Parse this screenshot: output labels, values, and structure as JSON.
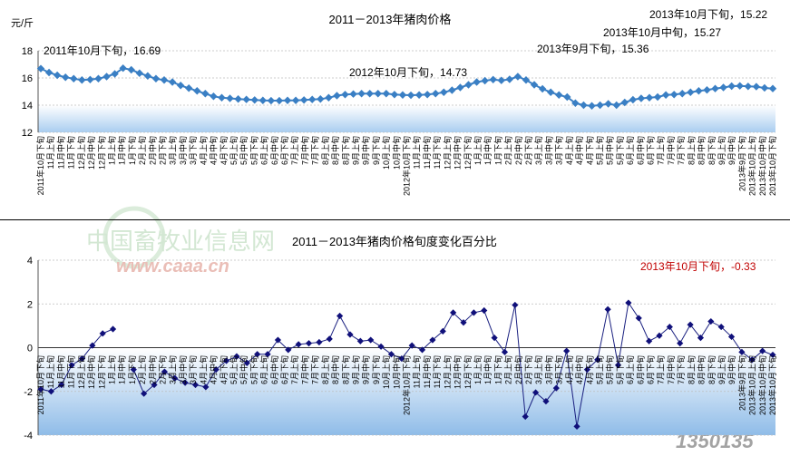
{
  "chart_data": [
    {
      "type": "line",
      "title": "2011－2013年猪肉价格",
      "ylabel": "元/斤",
      "ylim": [
        12,
        18
      ],
      "yticks": [
        12,
        14,
        16,
        18
      ],
      "grid": true,
      "series": [
        {
          "values": [
            16.69,
            16.4,
            16.2,
            16.05,
            15.95,
            15.85,
            15.88,
            15.95,
            16.1,
            16.3,
            16.72,
            16.6,
            16.35,
            16.15,
            15.95,
            15.85,
            15.7,
            15.45,
            15.25,
            15.05,
            14.85,
            14.65,
            14.55,
            14.5,
            14.45,
            14.42,
            14.38,
            14.35,
            14.33,
            14.33,
            14.35,
            14.35,
            14.38,
            14.42,
            14.45,
            14.55,
            14.7,
            14.78,
            14.82,
            14.85,
            14.85,
            14.85,
            14.85,
            14.78,
            14.75,
            14.73,
            14.75,
            14.78,
            14.85,
            14.95,
            15.1,
            15.3,
            15.5,
            15.7,
            15.8,
            15.88,
            15.82,
            15.9,
            16.1,
            15.85,
            15.5,
            15.2,
            14.95,
            14.75,
            14.6,
            14.15,
            14.0,
            13.95,
            14.0,
            14.1,
            14.0,
            14.2,
            14.4,
            14.5,
            14.55,
            14.6,
            14.75,
            14.78,
            14.85,
            14.95,
            15.05,
            15.12,
            15.22,
            15.3,
            15.4,
            15.42,
            15.38,
            15.36,
            15.27,
            15.22
          ]
        }
      ],
      "annotations": [
        {
          "text": "2011年10月下旬，16.69"
        },
        {
          "text": "2012年10月下旬，14.73"
        },
        {
          "text": "2013年9月下旬，15.36"
        },
        {
          "text": "2013年10月中旬，15.27"
        },
        {
          "text": "2013年10月下旬，15.22"
        }
      ]
    },
    {
      "type": "line",
      "title": "2011－2013年猪肉价格旬度变化百分比",
      "ylim": [
        -4,
        4
      ],
      "yticks": [
        -4,
        -2,
        0,
        2,
        4
      ],
      "grid": true,
      "series": [
        {
          "values": [
            -1.9,
            -2.0,
            -1.7,
            -0.8,
            -0.5,
            0.1,
            0.65,
            0.85,
            null,
            -1.0,
            -2.1,
            -1.7,
            -1.1,
            -1.4,
            -1.6,
            -1.7,
            -1.8,
            -1.0,
            -0.6,
            -0.4,
            -0.7,
            -0.3,
            -0.3,
            0.35,
            -0.1,
            0.15,
            0.2,
            0.25,
            0.4,
            1.45,
            0.6,
            0.3,
            0.35,
            0.05,
            -0.3,
            -0.5,
            0.1,
            -0.1,
            0.35,
            0.75,
            1.6,
            1.15,
            1.6,
            1.7,
            0.45,
            -0.2,
            1.95,
            -3.15,
            -2.05,
            -2.45,
            -1.85,
            -0.15,
            -3.6,
            -1.0,
            -0.55,
            1.75,
            -0.8,
            2.05,
            1.35,
            0.3,
            0.55,
            0.95,
            0.2,
            1.05,
            0.45,
            1.2,
            0.95,
            0.5,
            -0.2,
            -0.55,
            -0.15,
            -0.33
          ]
        }
      ],
      "annotations": [
        {
          "text": "2013年10月下旬，-0.33"
        }
      ],
      "colors": {
        "line": "#10107a",
        "band": "#a9cdf0"
      }
    }
  ],
  "x_labels": [
    "2011年10月下旬",
    "11月上旬",
    "11月中旬",
    "11月下旬",
    "12月上旬",
    "12月中旬",
    "12月下旬",
    "1月上旬",
    "1月中旬",
    "1月下旬",
    "2月上旬",
    "2月中旬",
    "2月下旬",
    "3月上旬",
    "3月中旬",
    "3月下旬",
    "4月上旬",
    "4月中旬",
    "4月下旬",
    "5月上旬",
    "5月中旬",
    "5月下旬",
    "6月上旬",
    "6月中旬",
    "6月下旬",
    "7月上旬",
    "7月中旬",
    "7月下旬",
    "8月上旬",
    "8月中旬",
    "8月下旬",
    "9月上旬",
    "9月中旬",
    "9月下旬",
    "10月上旬",
    "10月中旬",
    "2012年10月下旬",
    "11月上旬",
    "11月中旬",
    "11月下旬",
    "12月上旬",
    "12月中旬",
    "12月下旬",
    "1月上旬",
    "1月中旬",
    "1月下旬",
    "2月上旬",
    "2月中旬",
    "2月下旬",
    "3月上旬",
    "3月中旬",
    "3月下旬",
    "4月上旬",
    "4月中旬",
    "4月下旬",
    "5月上旬",
    "5月中旬",
    "5月下旬",
    "6月上旬",
    "6月中旬",
    "6月下旬",
    "7月上旬",
    "7月中旬",
    "7月下旬",
    "8月上旬",
    "8月中旬",
    "8月下旬",
    "9月上旬",
    "9月中旬",
    "2013年9月下旬",
    "2013年10月上旬",
    "2013年10月中旬",
    "2013年10月下旬"
  ],
  "watermark": {
    "cn": "中国畜牧业信息网",
    "url": "www.caaa.cn",
    "corner": "1350135"
  }
}
